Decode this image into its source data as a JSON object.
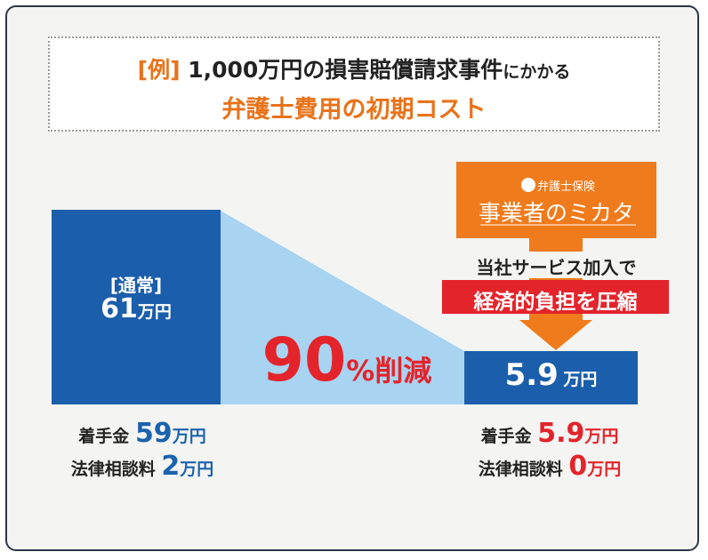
{
  "header": {
    "prefix": "[例]",
    "subject": "1,000万円の損害賠償請求事件",
    "connector": "にかかる",
    "title": "弁護士費用の初期コスト"
  },
  "normal": {
    "label": "[通常]",
    "amount": 61,
    "unit": "万円",
    "breakdown": [
      {
        "label": "着手金",
        "amount": 59,
        "unit": "万円"
      },
      {
        "label": "法律相談料",
        "amount": 2,
        "unit": "万円"
      }
    ]
  },
  "reduction": {
    "percent": 90,
    "suffix": "%削減"
  },
  "service": {
    "brand_small": "弁護士保険",
    "brand": "事業者のミカタ",
    "caption": "当社サービス加入で",
    "highlight": "経済的負担を圧縮",
    "amount": 5.9,
    "unit": "万円",
    "breakdown": [
      {
        "label": "着手金",
        "amount": 5.9,
        "unit": "万円"
      },
      {
        "label": "法律相談料",
        "amount": 0,
        "unit": "万円"
      }
    ]
  }
}
